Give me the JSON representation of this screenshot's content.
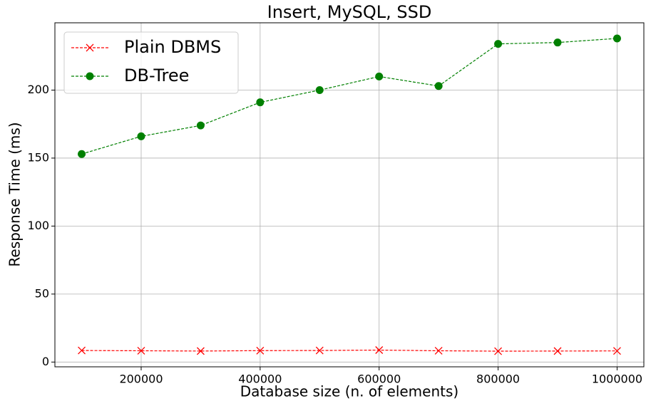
{
  "chart_data": {
    "type": "line",
    "title": "Insert, MySQL, SSD",
    "xlabel": "Database size (n. of elements)",
    "ylabel": "Response Time (ms)",
    "x": [
      100000,
      200000,
      300000,
      400000,
      500000,
      600000,
      700000,
      800000,
      900000,
      1000000
    ],
    "series": [
      {
        "name": "Plain DBMS",
        "color": "#ff0000",
        "marker": "x",
        "values": [
          8.5,
          8.3,
          8.1,
          8.4,
          8.5,
          8.8,
          8.3,
          8.0,
          8.1,
          8.2
        ]
      },
      {
        "name": "DB-Tree",
        "color": "#008000",
        "marker": "o",
        "values": [
          153,
          166,
          174,
          191,
          200,
          210,
          203,
          234,
          235,
          238
        ]
      }
    ],
    "xlim": [
      55000,
      1045000
    ],
    "xticks": [
      200000,
      400000,
      600000,
      800000,
      1000000
    ],
    "ylim": [
      -3.5,
      249.5
    ],
    "yticks": [
      0,
      50,
      100,
      150,
      200
    ],
    "grid": true,
    "legend": "upper left"
  }
}
